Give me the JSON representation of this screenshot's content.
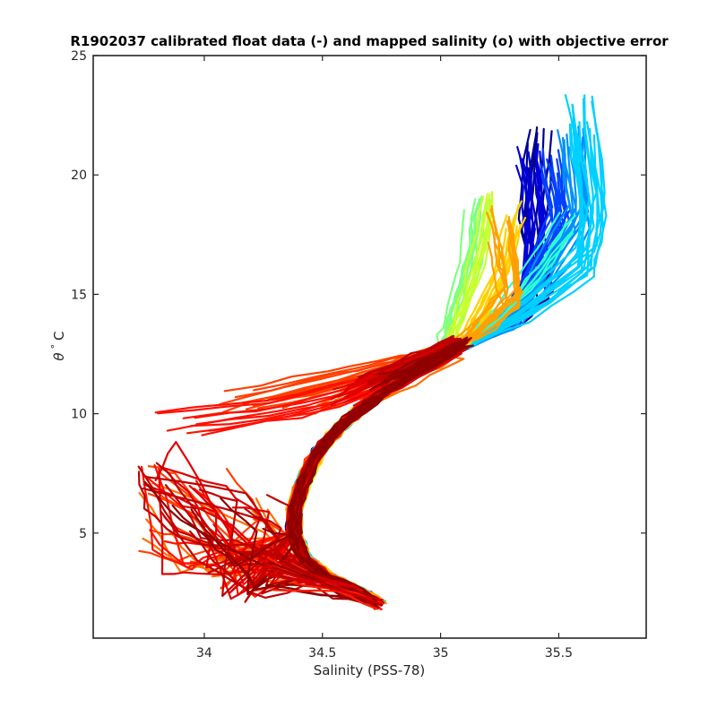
{
  "chart_data": {
    "type": "line",
    "title": "R1902037 calibrated float data (-) and mapped salinity (o) with objective error",
    "xlabel": "Salinity (PSS-78)",
    "ylabel_symbol": "θ",
    "ylabel_degree": "°",
    "ylabel_unit": "C",
    "xlim": [
      33.53,
      35.87
    ],
    "ylim": [
      0.6,
      25
    ],
    "xticks": [
      {
        "value": 34,
        "label": "34"
      },
      {
        "value": 34.5,
        "label": "34.5"
      },
      {
        "value": 35,
        "label": "35"
      },
      {
        "value": 35.5,
        "label": "35.5"
      }
    ],
    "yticks": [
      {
        "value": 5,
        "label": "5"
      },
      {
        "value": 10,
        "label": "10"
      },
      {
        "value": 15,
        "label": "15"
      },
      {
        "value": 20,
        "label": "20"
      },
      {
        "value": 25,
        "label": "25"
      }
    ],
    "grid": false,
    "legend": "none",
    "colormap": "jet",
    "profile_groups": [
      {
        "color": "#00008f",
        "n": 10,
        "warm": [
          [
            35.42,
            21.2
          ],
          [
            35.38,
            17.6
          ],
          [
            35.43,
            15.4
          ],
          [
            35.32,
            14.1
          ]
        ],
        "spread_x": 0.055,
        "spread_y": 0.9
      },
      {
        "color": "#0000d8",
        "n": 12,
        "warm": [
          [
            35.37,
            20.6
          ],
          [
            35.4,
            17.9
          ],
          [
            35.38,
            15.6
          ],
          [
            35.31,
            14.0
          ]
        ],
        "spread_x": 0.05,
        "spread_y": 0.9
      },
      {
        "color": "#0040ff",
        "n": 14,
        "warm": [
          [
            35.46,
            20.4
          ],
          [
            35.5,
            18.1
          ],
          [
            35.4,
            15.8
          ],
          [
            35.3,
            14.0
          ]
        ],
        "spread_x": 0.05,
        "spread_y": 0.8
      },
      {
        "color": "#0090ff",
        "n": 14,
        "warm": [
          [
            35.55,
            21.5
          ],
          [
            35.58,
            18.4
          ],
          [
            35.43,
            15.9
          ],
          [
            35.3,
            14.0
          ]
        ],
        "spread_x": 0.06,
        "spread_y": 0.9
      },
      {
        "color": "#00d0ff",
        "n": 18,
        "warm": [
          [
            35.6,
            22.5
          ],
          [
            35.65,
            18.6
          ],
          [
            35.62,
            16.4
          ],
          [
            35.35,
            14.3
          ]
        ],
        "spread_x": 0.07,
        "spread_y": 1.0
      },
      {
        "color": "#30ffd0",
        "n": 6,
        "warm": [
          [
            35.52,
            18.0
          ],
          [
            35.4,
            16.2
          ],
          [
            35.25,
            14.3
          ]
        ],
        "spread_x": 0.04,
        "spread_y": 0.6
      },
      {
        "color": "#80ff80",
        "n": 10,
        "warm": [
          [
            35.15,
            18.4
          ],
          [
            35.12,
            16.3
          ],
          [
            35.06,
            14.4
          ],
          [
            35.02,
            13.2
          ]
        ],
        "spread_x": 0.05,
        "spread_y": 0.8
      },
      {
        "color": "#c8ff30",
        "n": 8,
        "warm": [
          [
            35.2,
            18.8
          ],
          [
            35.16,
            16.6
          ],
          [
            35.1,
            14.6
          ],
          [
            35.05,
            13.3
          ]
        ],
        "spread_x": 0.04,
        "spread_y": 0.8
      },
      {
        "color": "#ffd000",
        "n": 10,
        "warm": [
          [
            35.3,
            18.4
          ],
          [
            35.24,
            16.1
          ],
          [
            35.16,
            14.4
          ],
          [
            35.1,
            13.2
          ]
        ],
        "spread_x": 0.05,
        "spread_y": 0.7
      },
      {
        "color": "#ffa000",
        "n": 14,
        "warm": [
          [
            35.25,
            17.9
          ],
          [
            35.28,
            16.3
          ],
          [
            35.3,
            15.0
          ],
          [
            35.2,
            13.9
          ]
        ],
        "spread_x": 0.06,
        "spread_y": 0.8
      },
      {
        "color": "#ff7000",
        "n": 12,
        "warm": [
          [
            34.55,
            10.6
          ],
          [
            34.8,
            11.6
          ],
          [
            35.02,
            12.6
          ]
        ],
        "spread_x": 0.12,
        "spread_y": 0.6
      },
      {
        "color": "#ff4000",
        "n": 14,
        "warm": [
          [
            34.2,
            10.6
          ],
          [
            34.6,
            11.5
          ],
          [
            34.9,
            12.3
          ]
        ],
        "spread_x": 0.15,
        "spread_y": 0.6
      },
      {
        "color": "#ff1000",
        "n": 10,
        "warm": [
          [
            33.9,
            9.6
          ],
          [
            34.35,
            10.2
          ],
          [
            34.75,
            11.3
          ]
        ],
        "spread_x": 0.12,
        "spread_y": 0.5
      },
      {
        "color": "#e00000",
        "n": 16,
        "warm": [
          [
            34.62,
            10.8
          ],
          [
            34.85,
            11.9
          ],
          [
            35.05,
            12.8
          ]
        ],
        "spread_x": 0.08,
        "spread_y": 0.5
      },
      {
        "color": "#c00000",
        "n": 14,
        "warm": [
          [
            34.7,
            11.2
          ],
          [
            34.92,
            12.2
          ],
          [
            35.08,
            13.0
          ]
        ],
        "spread_x": 0.06,
        "spread_y": 0.4
      },
      {
        "color": "#900000",
        "n": 10,
        "warm": [
          [
            34.75,
            11.3
          ],
          [
            34.95,
            12.2
          ],
          [
            35.1,
            13.0
          ]
        ],
        "spread_x": 0.05,
        "spread_y": 0.4
      }
    ],
    "trunk": [
      [
        35.1,
        13.0
      ],
      [
        35.0,
        12.3
      ],
      [
        34.85,
        11.5
      ],
      [
        34.7,
        10.5
      ],
      [
        34.58,
        9.5
      ],
      [
        34.48,
        8.4
      ],
      [
        34.42,
        7.2
      ],
      [
        34.38,
        6.0
      ],
      [
        34.38,
        5.0
      ],
      [
        34.42,
        4.0
      ],
      [
        34.52,
        3.2
      ],
      [
        34.65,
        2.6
      ],
      [
        34.74,
        2.1
      ]
    ],
    "deep_tail": [
      [
        34.45,
        3.3
      ],
      [
        34.2,
        3.5
      ],
      [
        33.95,
        4.0
      ],
      [
        33.8,
        5.0
      ],
      [
        33.75,
        7.0
      ]
    ]
  }
}
